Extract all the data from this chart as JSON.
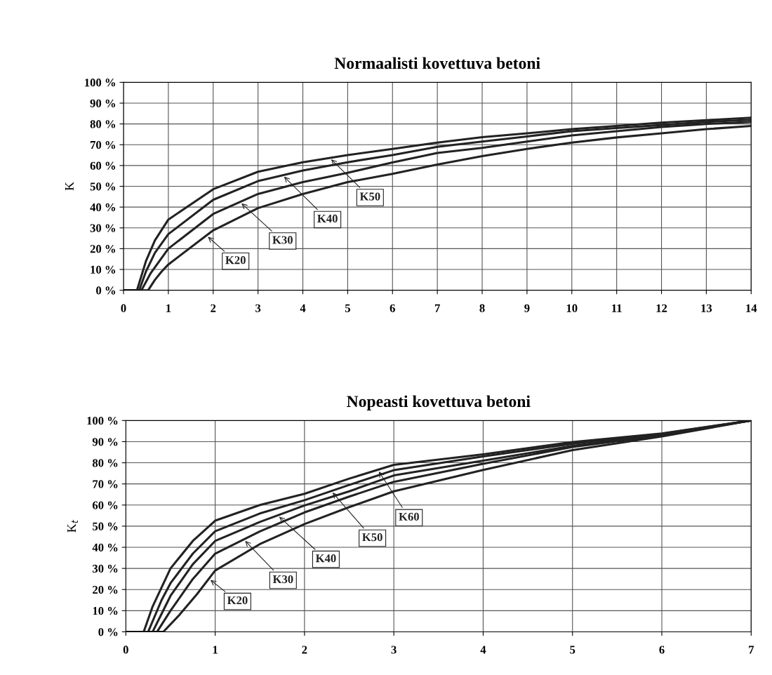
{
  "chart_data": [
    {
      "type": "line",
      "title": "Normaalisti kovettuva betoni",
      "ylabel": "K",
      "xlim": [
        0,
        14
      ],
      "xticks": [
        0,
        1,
        2,
        3,
        4,
        5,
        6,
        7,
        8,
        9,
        10,
        11,
        12,
        13,
        14
      ],
      "ylim": [
        0,
        100
      ],
      "yticks": [
        {
          "value": 0,
          "label": "0 %"
        },
        {
          "value": 10,
          "label": "10 %"
        },
        {
          "value": 20,
          "label": "20 %"
        },
        {
          "value": 30,
          "label": "30 %"
        },
        {
          "value": 40,
          "label": "40 %"
        },
        {
          "value": 50,
          "label": "50 %"
        },
        {
          "value": 60,
          "label": "60 %"
        },
        {
          "value": 70,
          "label": "70 %"
        },
        {
          "value": 80,
          "label": "80 %"
        },
        {
          "value": 90,
          "label": "90 %"
        },
        {
          "value": 100,
          "label": "100 %"
        }
      ],
      "grid": true,
      "marker": "none",
      "line_style": "solid",
      "series": [
        {
          "name": "K20",
          "color": "#222222",
          "x": [
            0,
            0.55,
            0.7,
            0.85,
            1,
            2,
            3,
            4,
            5,
            6,
            7,
            8,
            9,
            10,
            11,
            12,
            13,
            14
          ],
          "values": [
            0,
            0,
            5,
            9,
            12.4,
            28.8,
            39.5,
            46.3,
            52,
            56,
            60.5,
            64.5,
            68,
            71,
            73.5,
            75.5,
            77.5,
            79
          ]
        },
        {
          "name": "K30",
          "color": "#222222",
          "x": [
            0,
            0.4,
            0.6,
            0.8,
            1,
            2,
            3,
            4,
            5,
            6,
            7,
            8,
            9,
            10,
            11,
            12,
            13,
            14
          ],
          "values": [
            0,
            0,
            8,
            14,
            20,
            36.7,
            46.3,
            52,
            56.5,
            61.5,
            66,
            68.5,
            71.5,
            74.5,
            76.5,
            78.5,
            80,
            81
          ]
        },
        {
          "name": "K40",
          "color": "#222222",
          "x": [
            0,
            0.35,
            0.5,
            0.7,
            1,
            2,
            3,
            4,
            5,
            6,
            7,
            8,
            9,
            10,
            11,
            12,
            13,
            14
          ],
          "values": [
            0,
            0,
            9,
            18,
            27,
            43.5,
            52.5,
            57.6,
            61.6,
            65,
            69,
            71.5,
            74,
            76.5,
            78,
            79.5,
            81,
            82
          ]
        },
        {
          "name": "K50",
          "color": "#222222",
          "x": [
            0,
            0.3,
            0.5,
            0.7,
            1,
            2,
            3,
            4,
            5,
            6,
            7,
            8,
            9,
            10,
            11,
            12,
            13,
            14
          ],
          "values": [
            0,
            0,
            14,
            24,
            34,
            48.6,
            57,
            61.6,
            65,
            68,
            71,
            73.6,
            75.5,
            77.5,
            79,
            80.6,
            81.8,
            83
          ]
        }
      ]
    },
    {
      "type": "line",
      "title": "Nopeasti kovettuva betoni",
      "ylabel": "K$_{t}$",
      "xlim": [
        0,
        7
      ],
      "xticks": [
        0,
        1,
        2,
        3,
        4,
        5,
        6,
        7
      ],
      "ylim": [
        0,
        100
      ],
      "yticks": [
        {
          "value": 0,
          "label": "0 %"
        },
        {
          "value": 10,
          "label": "10 %"
        },
        {
          "value": 20,
          "label": "20 %"
        },
        {
          "value": 30,
          "label": "30 %"
        },
        {
          "value": 40,
          "label": "40 %"
        },
        {
          "value": 50,
          "label": "50 %"
        },
        {
          "value": 60,
          "label": "60 %"
        },
        {
          "value": 70,
          "label": "70 %"
        },
        {
          "value": 80,
          "label": "80 %"
        },
        {
          "value": 90,
          "label": "90 %"
        },
        {
          "value": 100,
          "label": "100 %"
        }
      ],
      "grid": true,
      "marker": "none",
      "line_style": "solid",
      "series": [
        {
          "name": "K20",
          "color": "#222222",
          "x": [
            0,
            0.42,
            0.6,
            0.8,
            1,
            1.5,
            2,
            2.5,
            3,
            4,
            5,
            6,
            7
          ],
          "values": [
            0,
            0,
            8,
            18,
            29,
            41.5,
            51,
            59,
            66.5,
            76.6,
            86,
            92.5,
            100
          ]
        },
        {
          "name": "K30",
          "color": "#222222",
          "x": [
            0,
            0.35,
            0.5,
            0.75,
            1,
            1.5,
            2,
            2.5,
            3,
            4,
            5,
            6,
            7
          ],
          "values": [
            0,
            0,
            10,
            25,
            37,
            47.5,
            56.5,
            64,
            71,
            79.5,
            87.5,
            93,
            100
          ]
        },
        {
          "name": "K40",
          "color": "#222222",
          "x": [
            0,
            0.3,
            0.5,
            0.75,
            1,
            1.5,
            2,
            2.5,
            3,
            4,
            5,
            6,
            7
          ],
          "values": [
            0,
            0,
            17,
            32,
            43,
            52,
            59.8,
            66.5,
            74,
            81,
            88,
            93.3,
            100
          ]
        },
        {
          "name": "K50",
          "color": "#222222",
          "x": [
            0,
            0.25,
            0.4,
            0.5,
            0.75,
            1,
            1.5,
            2,
            2.5,
            3,
            4,
            5,
            6,
            7
          ],
          "values": [
            0,
            0,
            15,
            23,
            37,
            47.6,
            56,
            62.3,
            69.5,
            76.5,
            83,
            89,
            93.7,
            100
          ]
        },
        {
          "name": "K60",
          "color": "#222222",
          "x": [
            0,
            0.2,
            0.3,
            0.5,
            0.75,
            1,
            1.5,
            2,
            2.5,
            3,
            4,
            5,
            6,
            7
          ],
          "values": [
            0,
            0,
            12,
            30,
            43,
            52.6,
            60,
            65.3,
            72.5,
            79,
            84,
            89.8,
            93.9,
            100
          ]
        }
      ]
    }
  ]
}
